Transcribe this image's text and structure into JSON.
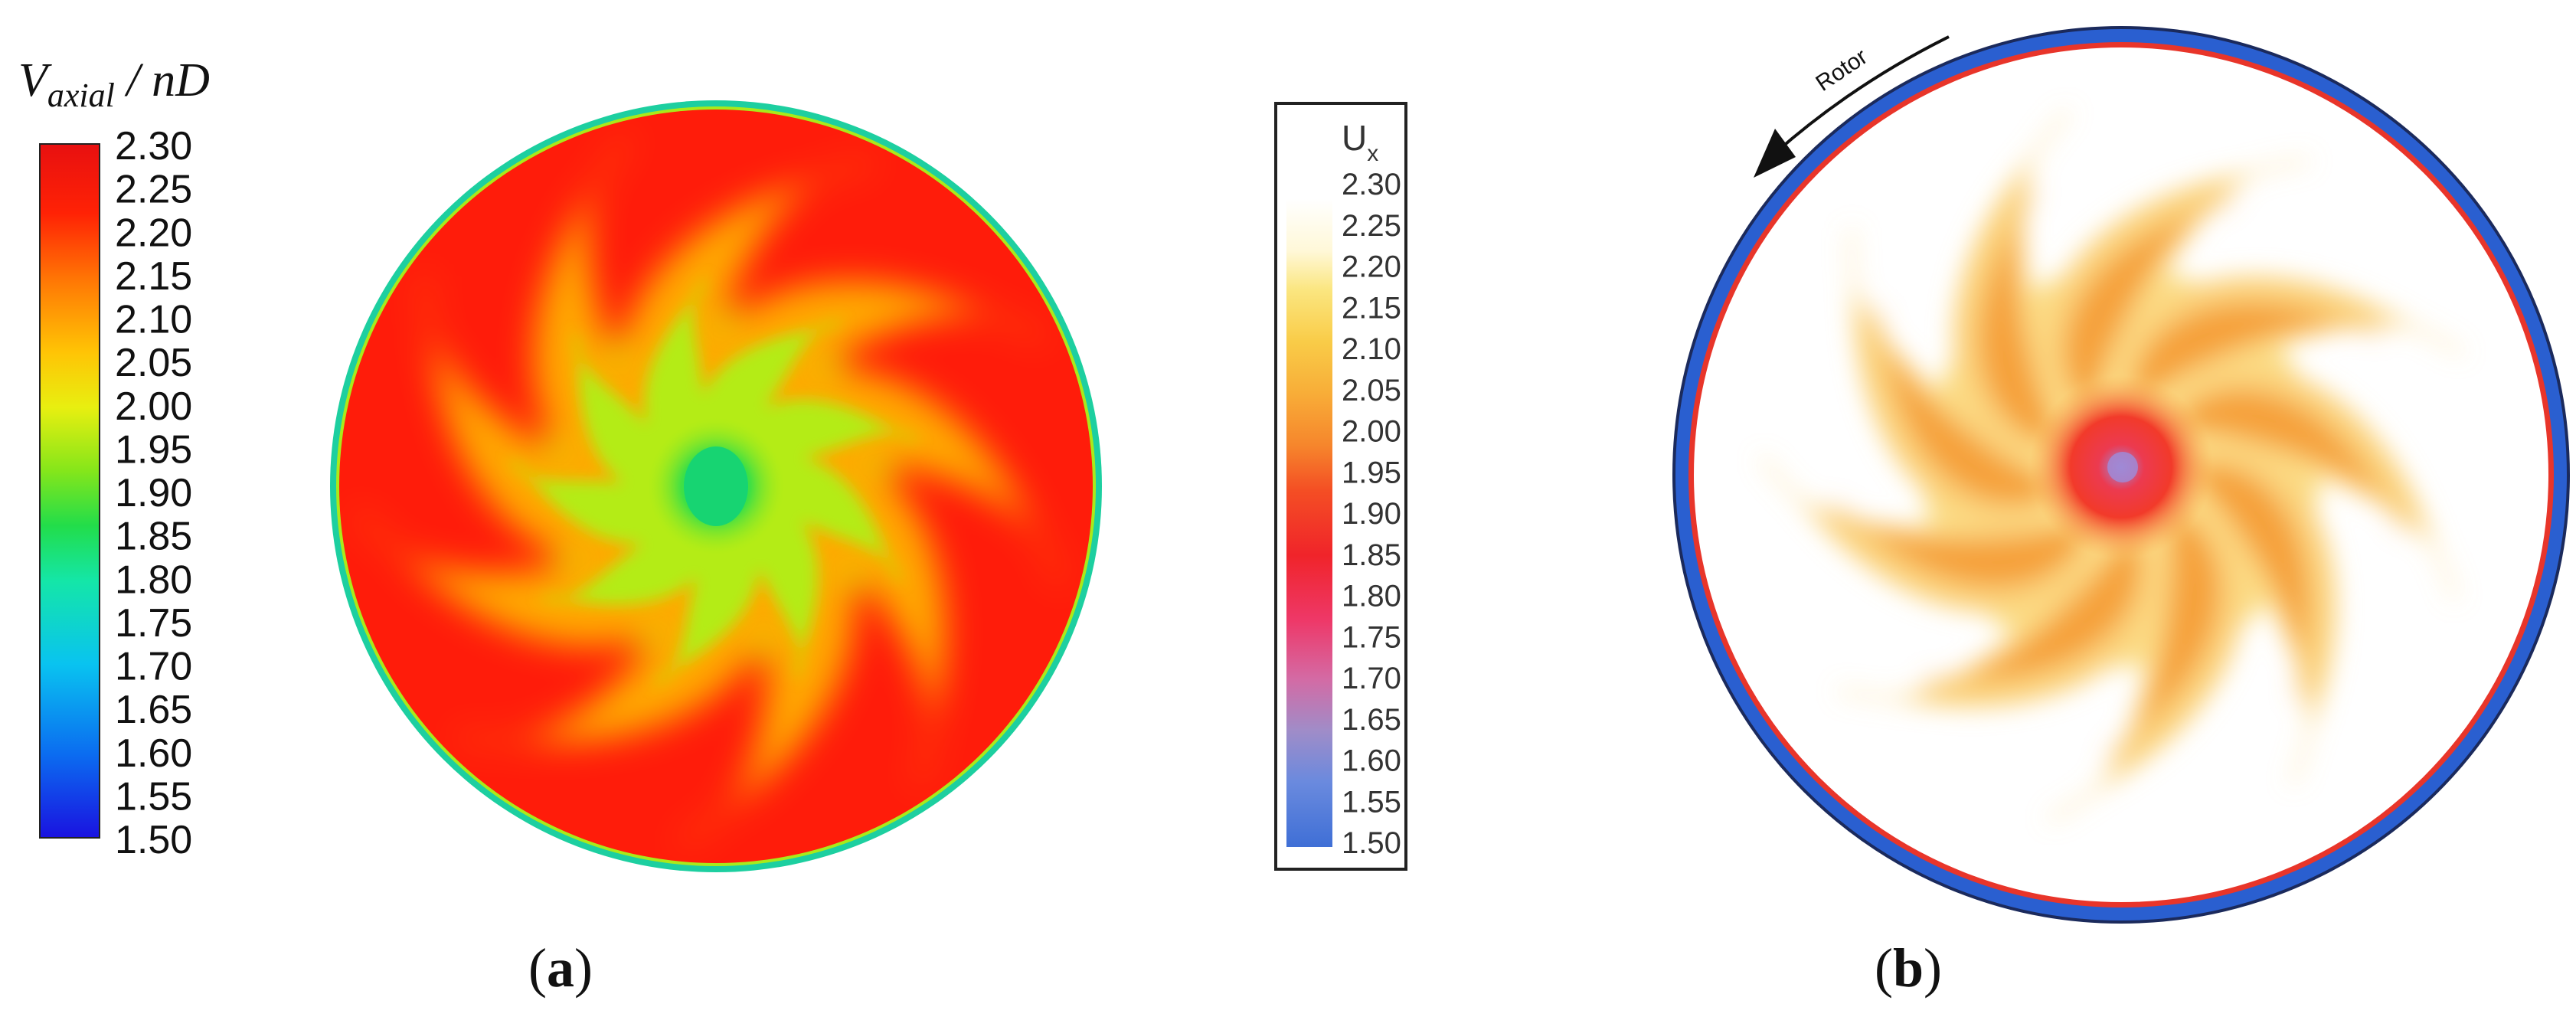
{
  "panel_a": {
    "legend_title_main": "V",
    "legend_title_sub": "axial",
    "legend_title_rest": " / nD",
    "ticks": [
      "2.30",
      "2.25",
      "2.20",
      "2.15",
      "2.10",
      "2.05",
      "2.00",
      "1.95",
      "1.90",
      "1.85",
      "1.80",
      "1.75",
      "1.70",
      "1.65",
      "1.60",
      "1.55",
      "1.50"
    ],
    "colormap": [
      "#1a12e0",
      "#0b6cf0",
      "#09c3f0",
      "#14e6a8",
      "#22dd4a",
      "#86e61a",
      "#e8ef10",
      "#ffc405",
      "#ff7a05",
      "#ff2205",
      "#e81010"
    ],
    "contour_colors": {
      "core": "#22dd55",
      "mid": "#b4ec12",
      "outer": "#ff1a0a",
      "edge": "#1dcfa0"
    },
    "blade_count": 9,
    "label_open": "(",
    "label_letter": "a",
    "label_close": ")"
  },
  "panel_b": {
    "legend_title_main": "U",
    "legend_title_sub": "x",
    "ticks": [
      "2.30",
      "2.25",
      "2.20",
      "2.15",
      "2.10",
      "2.05",
      "2.00",
      "1.95",
      "1.90",
      "1.85",
      "1.80",
      "1.75",
      "1.70",
      "1.65",
      "1.60",
      "1.55",
      "1.50"
    ],
    "colormap": [
      "#3f6fd6",
      "#6a8ade",
      "#a08cc8",
      "#d46aa4",
      "#ee3868",
      "#f0242a",
      "#f44e24",
      "#f6862c",
      "#f8ad38",
      "#f9cc48",
      "#fbe680",
      "#fff8d8"
    ],
    "contour_colors": {
      "core": "#ef2f2f",
      "blade": "#f6b54a",
      "background": "#ffffff",
      "ring": "#2a5fd0",
      "ring_inner": "#e8352a"
    },
    "blade_count": 9,
    "rotor_label": "Rotor",
    "label_open": "(",
    "label_letter": "b",
    "label_close": ")"
  }
}
